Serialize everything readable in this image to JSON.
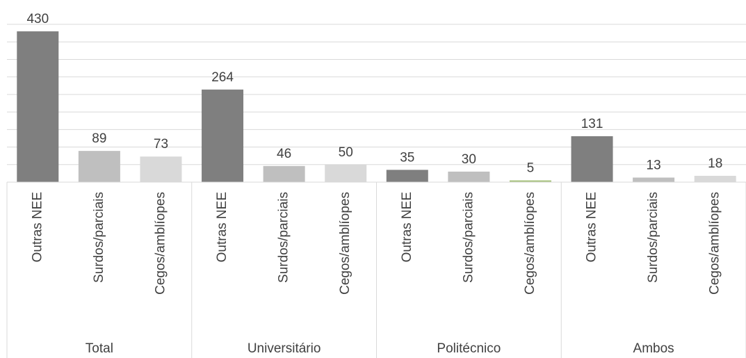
{
  "chart_data": {
    "type": "bar",
    "groups": [
      {
        "name": "Total",
        "categories": [
          "Outras NEE",
          "Surdos/parciais",
          "Cegos/amblíopes"
        ],
        "values": [
          430,
          89,
          73
        ],
        "colors": [
          "#7f7f7f",
          "#bfbfbf",
          "#d9d9d9"
        ]
      },
      {
        "name": "Universitário",
        "categories": [
          "Outras NEE",
          "Surdos/parciais",
          "Cegos/amblíopes"
        ],
        "values": [
          264,
          46,
          50
        ],
        "colors": [
          "#7f7f7f",
          "#bfbfbf",
          "#d9d9d9"
        ]
      },
      {
        "name": "Politécnico",
        "categories": [
          "Outras NEE",
          "Surdos/parciais",
          "Cegos/amblíopes"
        ],
        "values": [
          35,
          30,
          5
        ],
        "colors": [
          "#7f7f7f",
          "#bfbfbf",
          "#a9c47f"
        ]
      },
      {
        "name": "Ambos",
        "categories": [
          "Outras NEE",
          "Surdos/parciais",
          "Cegos/amblíopes"
        ],
        "values": [
          131,
          13,
          18
        ],
        "colors": [
          "#7f7f7f",
          "#bfbfbf",
          "#d9d9d9"
        ]
      }
    ],
    "ylim": [
      0,
      450
    ],
    "yticks": [
      0,
      50,
      100,
      150,
      200,
      250,
      300,
      350,
      400,
      450
    ],
    "grid": true,
    "ytick_labels": false
  }
}
